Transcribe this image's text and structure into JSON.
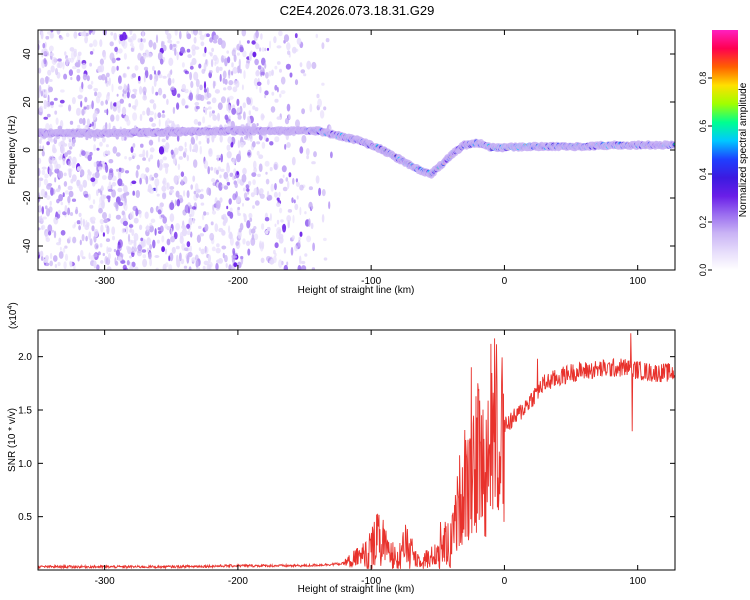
{
  "title": "C2E4.2026.073.18.31.G29",
  "colors": {
    "snr_line": "#e8322c",
    "axis": "#000000",
    "colormap": [
      "#ffffff",
      "#e6dcfb",
      "#c9b3f5",
      "#9b6ef0",
      "#6a1fe8",
      "#3c1ae0",
      "#1e40ff",
      "#00c8ff",
      "#00ff90",
      "#a0ff00",
      "#ffe000",
      "#ff6000",
      "#ff0050",
      "#ff20c0"
    ]
  },
  "chart_data": [
    {
      "type": "heatmap",
      "name": "spectrogram",
      "xlabel": "Height of straight line (km)",
      "ylabel": "Frequency (Hz)",
      "xlim": [
        -350,
        128
      ],
      "ylim": [
        -50,
        50
      ],
      "xticks": [
        -300,
        -200,
        -100,
        0,
        100
      ],
      "yticks": [
        -40,
        -20,
        0,
        20,
        40
      ],
      "xtick_labels": [
        "-300",
        "-200",
        "-100",
        "0",
        "100"
      ],
      "ytick_labels": [
        "-40",
        "-20",
        "0",
        "20",
        "40"
      ],
      "ridge": [
        {
          "x": -350,
          "y": 7
        },
        {
          "x": -300,
          "y": 7
        },
        {
          "x": -250,
          "y": 7.5
        },
        {
          "x": -200,
          "y": 8
        },
        {
          "x": -160,
          "y": 8
        },
        {
          "x": -140,
          "y": 8
        },
        {
          "x": -125,
          "y": 6
        },
        {
          "x": -110,
          "y": 4
        },
        {
          "x": -95,
          "y": 1
        },
        {
          "x": -85,
          "y": -2
        },
        {
          "x": -75,
          "y": -5
        },
        {
          "x": -65,
          "y": -8
        },
        {
          "x": -55,
          "y": -10
        },
        {
          "x": -45,
          "y": -5
        },
        {
          "x": -38,
          "y": -1
        },
        {
          "x": -30,
          "y": 2
        },
        {
          "x": -20,
          "y": 3
        },
        {
          "x": -10,
          "y": 1
        },
        {
          "x": 0,
          "y": 1
        },
        {
          "x": 20,
          "y": 1.5
        },
        {
          "x": 40,
          "y": 1.5
        },
        {
          "x": 60,
          "y": 1.5
        },
        {
          "x": 80,
          "y": 2
        },
        {
          "x": 100,
          "y": 2
        },
        {
          "x": 128,
          "y": 2
        }
      ],
      "noise_region": [
        -350,
        -140
      ],
      "colorbar": {
        "label": "Normalized spectral amplitude",
        "range": [
          0,
          1
        ],
        "ticks": [
          0.0,
          0.2,
          0.4,
          0.6,
          0.8
        ],
        "tick_labels": [
          "0.0",
          "0.2",
          "0.4",
          "0.6",
          "0.8"
        ]
      }
    },
    {
      "type": "line",
      "name": "snr",
      "xlabel": "Height of straight line (km)",
      "ylabel": "SNR (10 * v/v)",
      "y_multiplier_label": "(x10",
      "y_multiplier_exp": "4",
      "xlim": [
        -350,
        128
      ],
      "ylim": [
        0,
        2.25
      ],
      "xticks": [
        -300,
        -200,
        -100,
        0,
        100
      ],
      "yticks": [
        0.5,
        1.0,
        1.5,
        2.0
      ],
      "xtick_labels": [
        "-300",
        "-200",
        "-100",
        "0",
        "100"
      ],
      "ytick_labels": [
        "0.5",
        "1.0",
        "1.5",
        "2.0"
      ],
      "trend": [
        {
          "x": -350,
          "y": 0.03
        },
        {
          "x": -250,
          "y": 0.03
        },
        {
          "x": -200,
          "y": 0.04
        },
        {
          "x": -150,
          "y": 0.04
        },
        {
          "x": -120,
          "y": 0.06
        },
        {
          "x": -105,
          "y": 0.15
        },
        {
          "x": -95,
          "y": 0.3
        },
        {
          "x": -85,
          "y": 0.15
        },
        {
          "x": -75,
          "y": 0.25
        },
        {
          "x": -65,
          "y": 0.1
        },
        {
          "x": -55,
          "y": 0.12
        },
        {
          "x": -45,
          "y": 0.25
        },
        {
          "x": -38,
          "y": 0.35
        },
        {
          "x": -30,
          "y": 0.9
        },
        {
          "x": -25,
          "y": 0.7
        },
        {
          "x": -20,
          "y": 1.1
        },
        {
          "x": -15,
          "y": 0.9
        },
        {
          "x": -10,
          "y": 1.3
        },
        {
          "x": 0,
          "y": 1.35
        },
        {
          "x": 10,
          "y": 1.45
        },
        {
          "x": 20,
          "y": 1.6
        },
        {
          "x": 30,
          "y": 1.75
        },
        {
          "x": 50,
          "y": 1.85
        },
        {
          "x": 70,
          "y": 1.88
        },
        {
          "x": 90,
          "y": 1.9
        },
        {
          "x": 110,
          "y": 1.85
        },
        {
          "x": 128,
          "y": 1.85
        }
      ],
      "spikes": [
        {
          "x": -96,
          "y": 0.52
        },
        {
          "x": -91,
          "y": 0.47
        },
        {
          "x": -48,
          "y": 0.45
        },
        {
          "x": -25,
          "y": 1.9
        },
        {
          "x": -20,
          "y": 1.75
        },
        {
          "x": -10,
          "y": 2.12
        },
        {
          "x": 25,
          "y": 1.98
        },
        {
          "x": 95,
          "y": 2.22
        },
        {
          "x": 96,
          "y": 1.3
        }
      ]
    }
  ]
}
